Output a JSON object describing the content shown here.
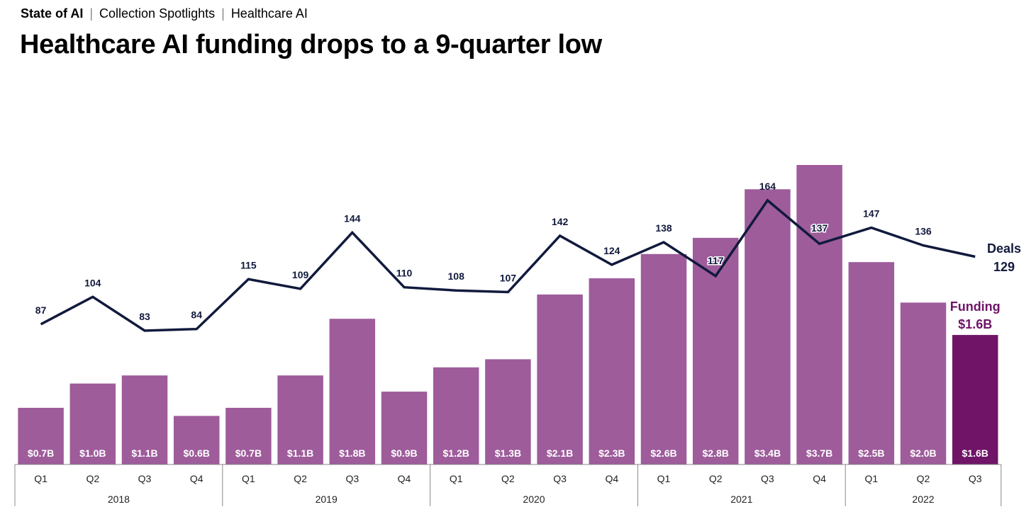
{
  "breadcrumb": {
    "items": [
      "State of AI",
      "Collection Spotlights",
      "Healthcare AI"
    ],
    "separator": "|"
  },
  "title": "Healthcare AI funding drops to a 9-quarter low",
  "colors": {
    "bar": "#9e5c9b",
    "bar_highlight": "#6f1467",
    "line": "#111a3d",
    "bar_label": "#ffffff",
    "highlight_label": "#6f1467",
    "axis": "#888888"
  },
  "chart_data": {
    "type": "bar",
    "quarters": [
      "Q1",
      "Q2",
      "Q3",
      "Q4",
      "Q1",
      "Q2",
      "Q3",
      "Q4",
      "Q1",
      "Q2",
      "Q3",
      "Q4",
      "Q1",
      "Q2",
      "Q3",
      "Q4",
      "Q1",
      "Q2",
      "Q3"
    ],
    "years": [
      {
        "label": "2018",
        "count": 4
      },
      {
        "label": "2019",
        "count": 4
      },
      {
        "label": "2020",
        "count": 4
      },
      {
        "label": "2021",
        "count": 4
      },
      {
        "label": "2022",
        "count": 3
      }
    ],
    "series": [
      {
        "name": "Funding",
        "kind": "bar",
        "unit": "$B",
        "values": [
          0.7,
          1.0,
          1.1,
          0.6,
          0.7,
          1.1,
          1.8,
          0.9,
          1.2,
          1.3,
          2.1,
          2.3,
          2.6,
          2.8,
          3.4,
          3.7,
          2.5,
          2.0,
          1.6
        ],
        "labels": [
          "$0.7B",
          "$1.0B",
          "$1.1B",
          "$0.6B",
          "$0.7B",
          "$1.1B",
          "$1.8B",
          "$0.9B",
          "$1.2B",
          "$1.3B",
          "$2.1B",
          "$2.3B",
          "$2.6B",
          "$2.8B",
          "$3.4B",
          "$3.7B",
          "$2.5B",
          "$2.0B",
          "$1.6B"
        ],
        "highlight_index": 18
      },
      {
        "name": "Deals",
        "kind": "line",
        "values": [
          87,
          104,
          83,
          84,
          115,
          109,
          144,
          110,
          108,
          107,
          142,
          124,
          138,
          117,
          164,
          137,
          147,
          136,
          129
        ]
      }
    ],
    "end_labels": {
      "deals_name": "Deals",
      "deals_value": "129",
      "funding_name": "Funding",
      "funding_value": "$1.6B"
    },
    "funding_ylim": [
      0,
      3.7
    ],
    "deals_ylim": [
      0,
      164
    ],
    "grid": false,
    "legend": "none"
  }
}
